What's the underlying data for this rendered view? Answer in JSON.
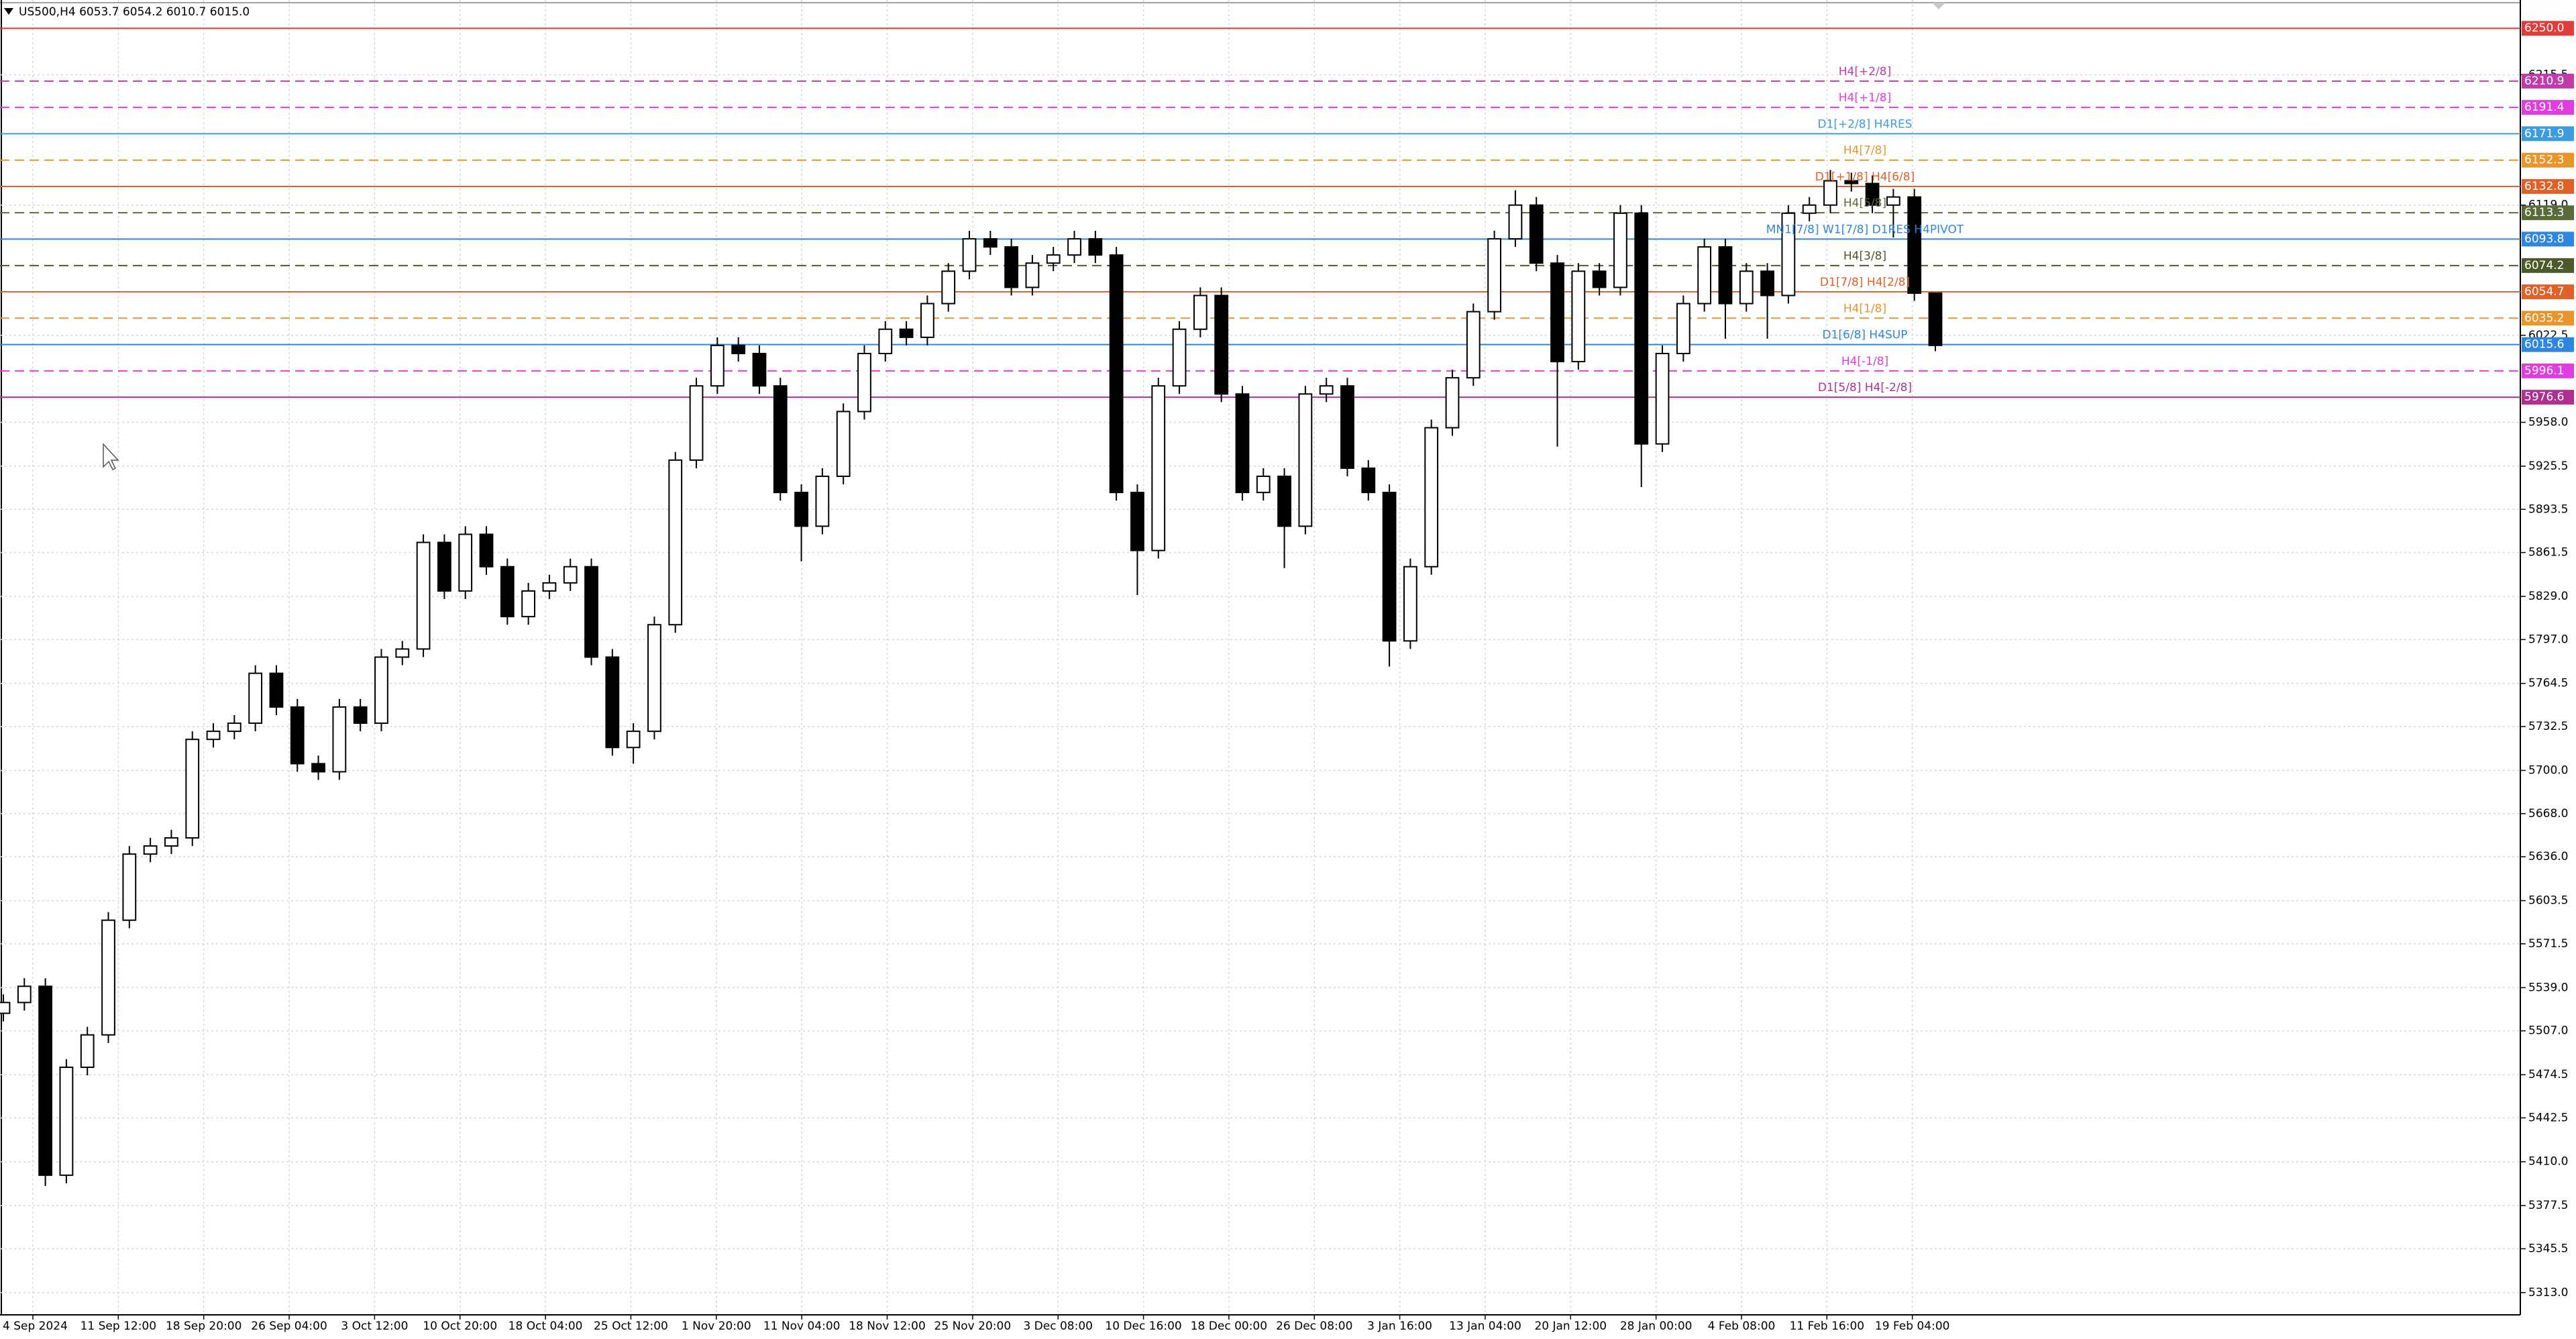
{
  "chart_data": {
    "type": "candlestick",
    "title": "US500,H4  6053.7 6054.2 6010.7 6015.0",
    "open": [
      5520,
      5528,
      5540,
      5400,
      5480,
      5504,
      5589,
      5638,
      5644,
      5650,
      5723,
      5729,
      5735,
      5772,
      5747,
      5705,
      5699,
      5747,
      5735,
      5784,
      5790,
      5869,
      5833,
      5875,
      5851,
      5814,
      5833,
      5839,
      5851,
      5784,
      5717,
      5729,
      5808,
      5930,
      5985,
      6015,
      6009,
      5985,
      5906,
      5881,
      5918,
      5966,
      6009,
      6027,
      6021,
      6046,
      6070,
      6094,
      6088,
      6058,
      6076,
      6082,
      6094,
      6082,
      5906,
      5863,
      5985,
      6027,
      6052,
      5979,
      5906,
      5918,
      5881,
      5979,
      5985,
      5924,
      5906,
      5796,
      5851,
      5954,
      5991,
      6040,
      6094,
      6119,
      6076,
      6003,
      6070,
      6058,
      6113,
      5942,
      6009,
      6046,
      6088,
      6046,
      6070,
      6052,
      6113,
      6119,
      6137,
      6135,
      6119,
      6125,
      6053.7
    ],
    "high": [
      5534,
      5546,
      5546,
      5486,
      5510,
      5595,
      5644,
      5650,
      5656,
      5729,
      5735,
      5741,
      5778,
      5778,
      5753,
      5711,
      5753,
      5753,
      5790,
      5796,
      5875,
      5875,
      5881,
      5881,
      5857,
      5839,
      5845,
      5857,
      5857,
      5790,
      5735,
      5814,
      5936,
      5991,
      6021,
      6021,
      6015,
      5991,
      5912,
      5924,
      5972,
      6015,
      6033,
      6033,
      6052,
      6076,
      6100,
      6100,
      6094,
      6082,
      6088,
      6100,
      6100,
      6088,
      5912,
      5991,
      6033,
      6058,
      6058,
      5985,
      5924,
      5924,
      5985,
      5991,
      5991,
      5930,
      5912,
      5857,
      5960,
      5997,
      6046,
      6100,
      6130,
      6125,
      6082,
      6076,
      6076,
      6119,
      6119,
      6015,
      6052,
      6094,
      6094,
      6076,
      6076,
      6119,
      6125,
      6145,
      6143,
      6141,
      6131,
      6131,
      6054.2
    ],
    "low": [
      5514,
      5522,
      5392,
      5394,
      5474,
      5498,
      5583,
      5632,
      5638,
      5644,
      5717,
      5723,
      5729,
      5741,
      5699,
      5693,
      5693,
      5729,
      5729,
      5778,
      5784,
      5827,
      5827,
      5845,
      5808,
      5808,
      5827,
      5833,
      5778,
      5711,
      5705,
      5723,
      5802,
      5924,
      5979,
      6003,
      5979,
      5900,
      5855,
      5875,
      5912,
      5960,
      6003,
      6015,
      6015,
      6040,
      6064,
      6082,
      6052,
      6052,
      6070,
      6076,
      6076,
      5900,
      5830,
      5857,
      5979,
      6021,
      5973,
      5900,
      5900,
      5850,
      5875,
      5973,
      5918,
      5900,
      5777,
      5790,
      5845,
      5948,
      5985,
      6034,
      6088,
      6070,
      5940,
      5997,
      6052,
      6052,
      5910,
      5936,
      6003,
      6040,
      6020,
      6040,
      6020,
      6046,
      6107,
      6113,
      6129,
      6113,
      6095,
      6048,
      6010.7
    ],
    "close": [
      5528,
      5540,
      5400,
      5480,
      5504,
      5589,
      5638,
      5644,
      5650,
      5723,
      5729,
      5735,
      5772,
      5747,
      5705,
      5699,
      5747,
      5735,
      5784,
      5790,
      5869,
      5833,
      5875,
      5851,
      5814,
      5833,
      5839,
      5851,
      5784,
      5717,
      5729,
      5808,
      5930,
      5985,
      6015,
      6009,
      5985,
      5906,
      5881,
      5918,
      5966,
      6009,
      6027,
      6021,
      6046,
      6070,
      6094,
      6088,
      6058,
      6076,
      6082,
      6094,
      6082,
      5906,
      5863,
      5985,
      6027,
      6052,
      5979,
      5906,
      5918,
      5881,
      5979,
      5985,
      5924,
      5906,
      5796,
      5851,
      5954,
      5991,
      6040,
      6094,
      6119,
      6076,
      6003,
      6070,
      6058,
      6113,
      5942,
      6009,
      6046,
      6088,
      6046,
      6070,
      6052,
      6113,
      6119,
      6137,
      6135,
      6119,
      6125,
      6053.7,
      6015
    ],
    "up_color": "#ffffff",
    "down_color": "#000000",
    "line_color": "#000000",
    "ylim": [
      5297,
      6271
    ],
    "yticks": [
      6215.5,
      {
        "value": 6119,
        "label": "6119.0"
      },
      6022.5,
      {
        "value": 5958,
        "label": "5958.0"
      },
      5925.5,
      5893.5,
      5861.5,
      {
        "value": 5829,
        "label": "5829.0"
      },
      {
        "value": 5797,
        "label": "5797.0"
      },
      5764.5,
      5732.5,
      {
        "value": 5700,
        "label": "5700.0"
      },
      {
        "value": 5668,
        "label": "5668.0"
      },
      {
        "value": 5636,
        "label": "5636.0"
      },
      5603.5,
      5571.5,
      {
        "value": 5539,
        "label": "5539.0"
      },
      {
        "value": 5507,
        "label": "5507.0"
      },
      5474.5,
      5442.5,
      {
        "value": 5410,
        "label": "5410.0"
      },
      5377.5,
      5345.5,
      {
        "value": 5313,
        "label": "5313.0"
      }
    ],
    "xlabels": [
      "4 Sep 2024",
      "11 Sep 12:00",
      "18 Sep 20:00",
      "26 Sep 04:00",
      "3 Oct 12:00",
      "10 Oct 20:00",
      "18 Oct 04:00",
      "25 Oct 12:00",
      "1 Nov 20:00",
      "11 Nov 04:00",
      "18 Nov 12:00",
      "25 Nov 20:00",
      "3 Dec 08:00",
      "10 Dec 16:00",
      "18 Dec 00:00",
      "26 Dec 08:00",
      "3 Jan 16:00",
      "13 Jan 04:00",
      "20 Jan 12:00",
      "28 Jan 00:00",
      "4 Feb 08:00",
      "11 Feb 16:00",
      "19 Feb 04:00"
    ],
    "grid": true,
    "levels": [
      {
        "value": 6250,
        "label": "6250.0",
        "color": "#e03c3c",
        "style": "solid"
      },
      {
        "name": "H4[+2/8]",
        "value": 6210.9,
        "label": "6210.9",
        "color": "#c03caa",
        "style": "dashed"
      },
      {
        "name": "H4[+1/8]",
        "value": 6191.4,
        "label": "6191.4",
        "color": "#e03ce0",
        "style": "dashed"
      },
      {
        "name": "D1[+2/8] H4RES",
        "value": 6171.9,
        "label": "6171.9",
        "color": "#3d9be0",
        "style": "solid"
      },
      {
        "name": "H4[7/8]",
        "value": 6152.3,
        "label": "6152.3",
        "color": "#e8962c",
        "style": "dashed"
      },
      {
        "name": "D1[+1/8] H4[6/8]",
        "value": 6132.8,
        "label": "6132.8",
        "color": "#e0602a",
        "style": "solid"
      },
      {
        "name": "H4[5/8]",
        "value": 6113.3,
        "label": "6113.3",
        "color": "#5a6b3a",
        "style": "dashed"
      },
      {
        "name": "MN1[7/8] W1[7/8] D1RES H4PIVOT",
        "value": 6093.8,
        "label": "6093.8",
        "color": "#2e86de",
        "style": "solid"
      },
      {
        "name": "H4[3/8]",
        "value": 6074.2,
        "label": "6074.2",
        "color": "#4a5a2a",
        "style": "dashed"
      },
      {
        "name": "D1[7/8] H4[2/8]",
        "value": 6054.7,
        "label": "6054.7",
        "color": "#e0602a",
        "style": "solid"
      },
      {
        "name": "H4[1/8]",
        "value": 6035.2,
        "label": "6035.2",
        "color": "#e8962c",
        "style": "dashed"
      },
      {
        "name": "D1[6/8] H4SUP",
        "value": 6015.6,
        "label": "6015.6",
        "color": "#2e86de",
        "style": "solid"
      },
      {
        "name": "H4[-1/8]",
        "value": 5996.1,
        "label": "5996.1",
        "color": "#e03ce0",
        "style": "dashed"
      },
      {
        "name": "D1[5/8] H4[-2/8]",
        "value": 5976.6,
        "label": "5976.6",
        "color": "#b03090",
        "style": "solid"
      }
    ]
  }
}
